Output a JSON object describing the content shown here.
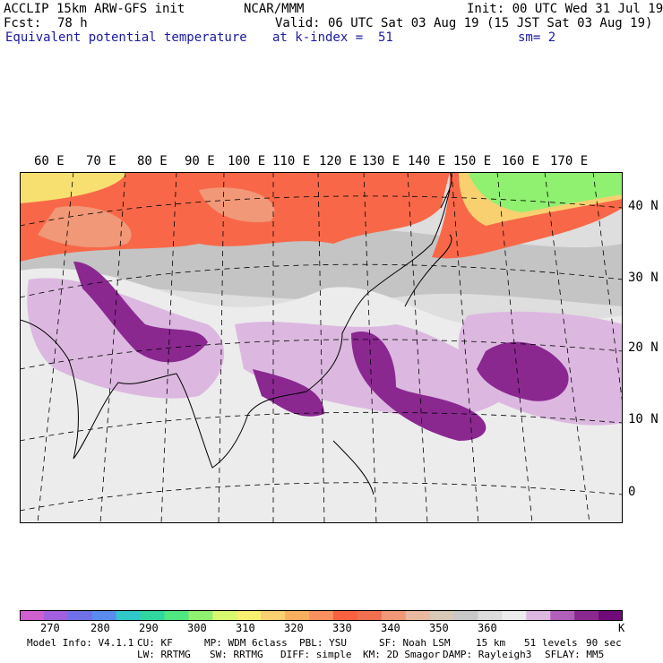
{
  "header": {
    "model": "ACCLIP 15km ARW-GFS init",
    "org": "NCAR/MMM",
    "init": "Init: 00 UTC Wed 31 Jul 19",
    "fcst_label": "Fcst:",
    "fcst_value": "78 h",
    "valid": "Valid: 06 UTC Sat 03 Aug 19 (15 JST Sat 03 Aug 19)",
    "field": "Equivalent potential temperature",
    "level": "at k-index =  51",
    "smooth": "sm= 2"
  },
  "map": {
    "lon_labels": [
      "60 E",
      "70 E",
      "80 E",
      "90 E",
      "100 E",
      "110 E",
      "120 E",
      "130 E",
      "140 E",
      "150 E",
      "160 E",
      "170 E"
    ],
    "lat_labels": [
      "40 N",
      "30 N",
      "20 N",
      "10 N",
      "0"
    ]
  },
  "colorbar": {
    "colors": [
      "#d060d0",
      "#a060e0",
      "#7070e8",
      "#5a8cf0",
      "#30c8c8",
      "#30d8a0",
      "#50e880",
      "#90f070",
      "#d8f870",
      "#f8f070",
      "#f8d070",
      "#f8b060",
      "#f89060",
      "#f86040",
      "#f07050",
      "#f09878",
      "#e8b8a0",
      "#d8c8b8",
      "#c8c8c8",
      "#dcdcdc",
      "#ececec",
      "#dcb8e0",
      "#b060b8",
      "#8a2890",
      "#700a78"
    ],
    "labels": [
      "270",
      "280",
      "290",
      "300",
      "310",
      "320",
      "330",
      "340",
      "350",
      "360"
    ],
    "unit": "K"
  },
  "model_info": {
    "line1": [
      "Model Info: V4.1.1",
      "CU: KF",
      "MP: WDM 6class",
      "PBL: YSU",
      "SF: Noah LSM",
      "15 km",
      "51 levels",
      "90 sec"
    ],
    "line2": [
      "LW: RRTMG",
      "SW: RRTMG",
      "DIFF: simple",
      "KM: 2D Smagor",
      "DAMP: Rayleigh3",
      "SFLAY: MM5"
    ]
  }
}
